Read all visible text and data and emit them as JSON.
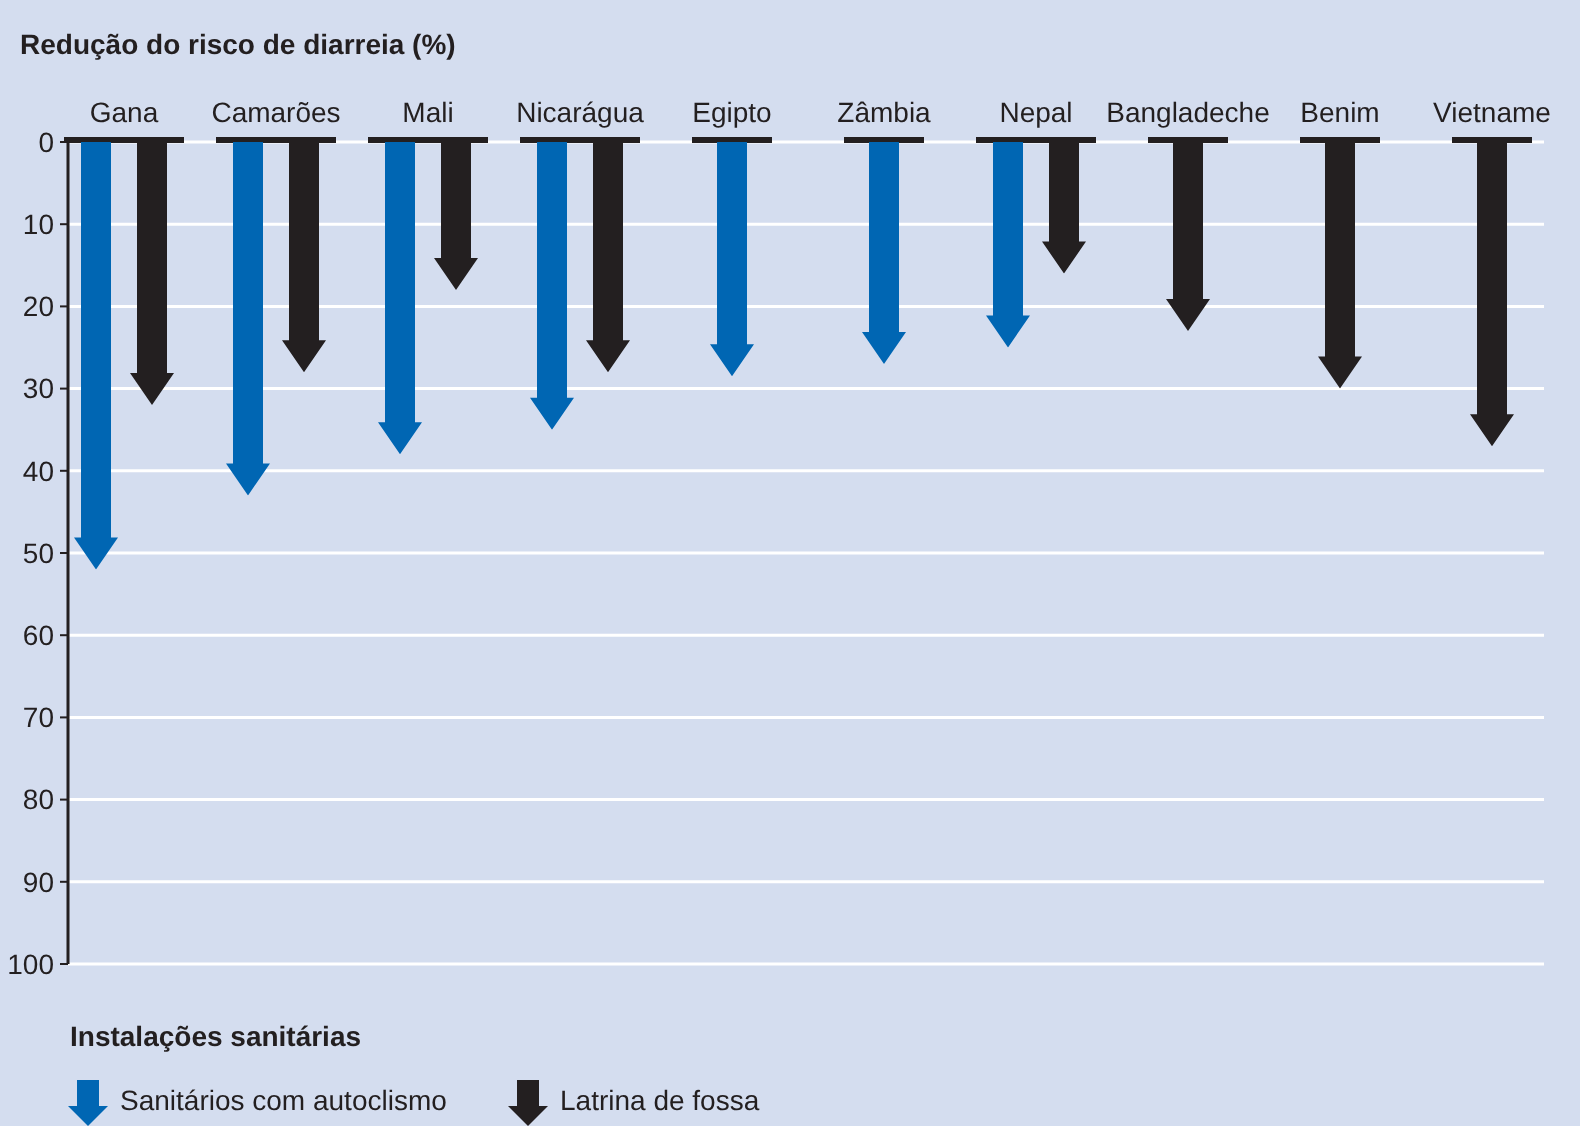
{
  "chart_data": {
    "type": "bar",
    "ylabel": "Redução do risco de diarreia (%)",
    "legend_title": "Instalações sanitárias",
    "categories": [
      "Gana",
      "Camarões",
      "Mali",
      "Nicarágua",
      "Egipto",
      "Zâmbia",
      "Nepal",
      "Bangladeche",
      "Benim",
      "Vietname"
    ],
    "series": [
      {
        "name": "Sanitários com autoclismo",
        "color": "#0066b3",
        "values": [
          52,
          43,
          38,
          35,
          28.5,
          27,
          25,
          null,
          null,
          null
        ]
      },
      {
        "name": "Latrina de fossa",
        "color": "#231f20",
        "values": [
          32,
          28,
          18,
          28,
          null,
          null,
          16,
          23,
          30,
          37
        ]
      }
    ],
    "ylim": [
      100,
      0
    ],
    "yticks": [
      0,
      10,
      20,
      30,
      40,
      50,
      60,
      70,
      80,
      90,
      100
    ],
    "grid": "y",
    "legend": "bottom"
  }
}
